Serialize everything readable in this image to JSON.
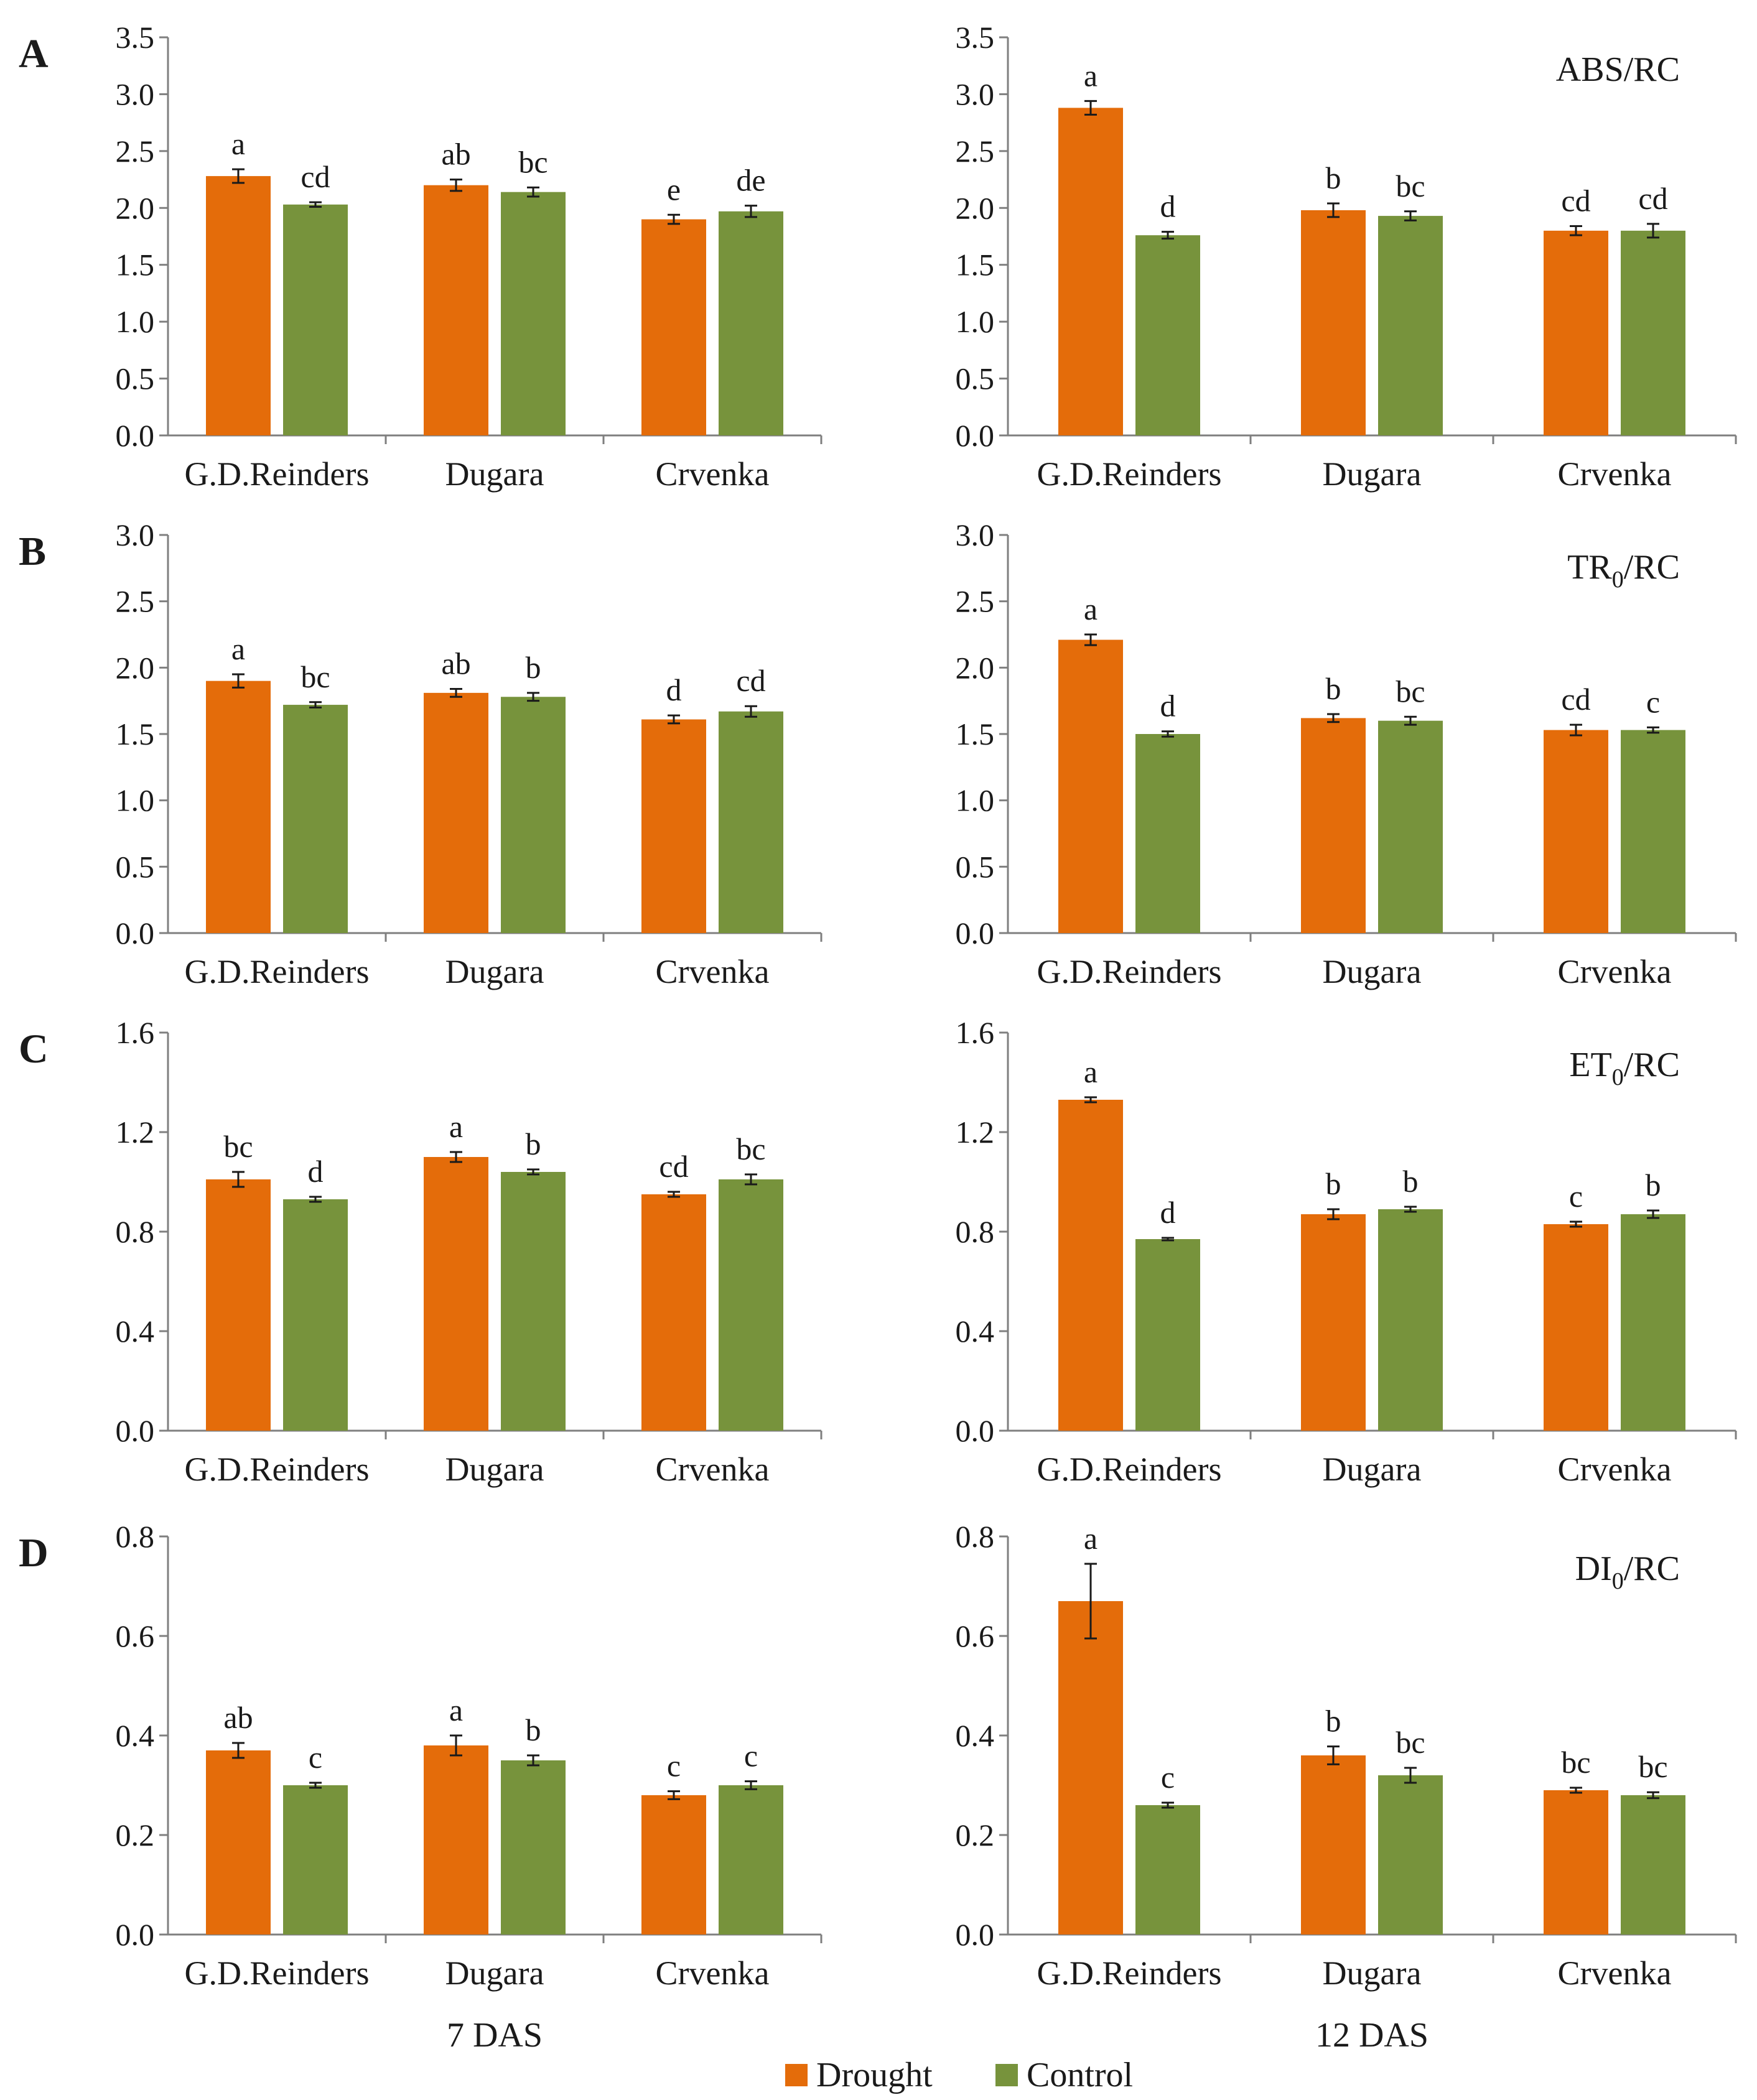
{
  "chart_data": {
    "type": "bar",
    "title": "",
    "legend": {
      "position": "bottom-center",
      "items": [
        {
          "name": "Drought",
          "color": "#E46C0A"
        },
        {
          "name": "Control",
          "color": "#77933C"
        }
      ]
    },
    "colors": {
      "Drought": "#E46C0A",
      "Control": "#77933C",
      "axis": "#7f7f7f",
      "text": "#1a1a1a",
      "error_bar": "#1a1a1a"
    },
    "time_labels": [
      "7 DAS",
      "12 DAS"
    ],
    "categories": [
      "G.D.Reinders",
      "Dugara",
      "Crvenka"
    ],
    "panels": [
      {
        "letter": "A",
        "parameter": {
          "main": "ABS/RC",
          "sub": "",
          "suffix": ""
        },
        "ylim": [
          0,
          3.5
        ],
        "yticks": [
          "0.0",
          "0.5",
          "1.0",
          "1.5",
          "2.0",
          "2.5",
          "3.0",
          "3.5"
        ],
        "charts": [
          {
            "time": "7 DAS",
            "series": [
              {
                "name": "Drought",
                "values": [
                  2.28,
                  2.2,
                  1.9
                ],
                "errors": [
                  0.06,
                  0.05,
                  0.04
                ],
                "labels": [
                  "a",
                  "ab",
                  "e"
                ]
              },
              {
                "name": "Control",
                "values": [
                  2.03,
                  2.14,
                  1.97
                ],
                "errors": [
                  0.02,
                  0.04,
                  0.05
                ],
                "labels": [
                  "cd",
                  "bc",
                  "de"
                ]
              }
            ]
          },
          {
            "time": "12 DAS",
            "series": [
              {
                "name": "Drought",
                "values": [
                  2.88,
                  1.98,
                  1.8
                ],
                "errors": [
                  0.06,
                  0.06,
                  0.04
                ],
                "labels": [
                  "a",
                  "b",
                  "cd"
                ]
              },
              {
                "name": "Control",
                "values": [
                  1.76,
                  1.93,
                  1.8
                ],
                "errors": [
                  0.03,
                  0.04,
                  0.06
                ],
                "labels": [
                  "d",
                  "bc",
                  "cd"
                ]
              }
            ]
          }
        ]
      },
      {
        "letter": "B",
        "parameter": {
          "main": "TR",
          "sub": "0",
          "suffix": "/RC"
        },
        "ylim": [
          0,
          3.0
        ],
        "yticks": [
          "0.0",
          "0.5",
          "1.0",
          "1.5",
          "2.0",
          "2.5",
          "3.0"
        ],
        "charts": [
          {
            "time": "7 DAS",
            "series": [
              {
                "name": "Drought",
                "values": [
                  1.9,
                  1.81,
                  1.61
                ],
                "errors": [
                  0.05,
                  0.03,
                  0.03
                ],
                "labels": [
                  "a",
                  "ab",
                  "d"
                ]
              },
              {
                "name": "Control",
                "values": [
                  1.72,
                  1.78,
                  1.67
                ],
                "errors": [
                  0.02,
                  0.03,
                  0.04
                ],
                "labels": [
                  "bc",
                  "b",
                  "cd"
                ]
              }
            ]
          },
          {
            "time": "12 DAS",
            "series": [
              {
                "name": "Drought",
                "values": [
                  2.21,
                  1.62,
                  1.53
                ],
                "errors": [
                  0.04,
                  0.03,
                  0.04
                ],
                "labels": [
                  "a",
                  "b",
                  "cd"
                ]
              },
              {
                "name": "Control",
                "values": [
                  1.5,
                  1.6,
                  1.53
                ],
                "errors": [
                  0.02,
                  0.03,
                  0.02
                ],
                "labels": [
                  "d",
                  "bc",
                  "c"
                ]
              }
            ]
          }
        ]
      },
      {
        "letter": "C",
        "parameter": {
          "main": "ET",
          "sub": "0",
          "suffix": "/RC"
        },
        "ylim": [
          0,
          1.6
        ],
        "yticks": [
          "0.0",
          "0.4",
          "0.8",
          "1.2",
          "1.6"
        ],
        "charts": [
          {
            "time": "7 DAS",
            "series": [
              {
                "name": "Drought",
                "values": [
                  1.01,
                  1.1,
                  0.95
                ],
                "errors": [
                  0.03,
                  0.02,
                  0.01
                ],
                "labels": [
                  "bc",
                  "a",
                  "cd"
                ]
              },
              {
                "name": "Control",
                "values": [
                  0.93,
                  1.04,
                  1.01
                ],
                "errors": [
                  0.01,
                  0.01,
                  0.02
                ],
                "labels": [
                  "d",
                  "b",
                  "bc"
                ]
              }
            ]
          },
          {
            "time": "12 DAS",
            "series": [
              {
                "name": "Drought",
                "values": [
                  1.33,
                  0.87,
                  0.83
                ],
                "errors": [
                  0.01,
                  0.02,
                  0.01
                ],
                "labels": [
                  "a",
                  "b",
                  "c"
                ]
              },
              {
                "name": "Control",
                "values": [
                  0.77,
                  0.89,
                  0.87
                ],
                "errors": [
                  0.005,
                  0.01,
                  0.015
                ],
                "labels": [
                  "d",
                  "b",
                  "b"
                ]
              }
            ]
          }
        ]
      },
      {
        "letter": "D",
        "parameter": {
          "main": "DI",
          "sub": "0",
          "suffix": "/RC"
        },
        "ylim": [
          0,
          0.8
        ],
        "yticks": [
          "0.0",
          "0.2",
          "0.4",
          "0.6",
          "0.8"
        ],
        "charts": [
          {
            "time": "7 DAS",
            "series": [
              {
                "name": "Drought",
                "values": [
                  0.37,
                  0.38,
                  0.28
                ],
                "errors": [
                  0.015,
                  0.02,
                  0.008
                ],
                "labels": [
                  "ab",
                  "a",
                  "c"
                ]
              },
              {
                "name": "Control",
                "values": [
                  0.3,
                  0.35,
                  0.3
                ],
                "errors": [
                  0.005,
                  0.01,
                  0.008
                ],
                "labels": [
                  "c",
                  "b",
                  "c"
                ]
              }
            ]
          },
          {
            "time": "12 DAS",
            "series": [
              {
                "name": "Drought",
                "values": [
                  0.67,
                  0.36,
                  0.29
                ],
                "errors": [
                  0.075,
                  0.018,
                  0.005
                ],
                "labels": [
                  "a",
                  "b",
                  "bc"
                ]
              },
              {
                "name": "Control",
                "values": [
                  0.26,
                  0.32,
                  0.28
                ],
                "errors": [
                  0.005,
                  0.015,
                  0.006
                ],
                "labels": [
                  "c",
                  "bc",
                  "bc"
                ]
              }
            ]
          }
        ]
      }
    ]
  }
}
